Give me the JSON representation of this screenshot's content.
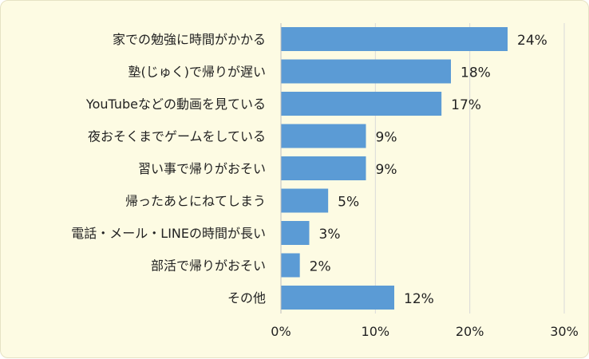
{
  "chart_data": {
    "type": "bar",
    "orientation": "horizontal",
    "categories": [
      "家での勉強に時間がかかる",
      "塾(じゅく)で帰りが遅い",
      "YouTubeなどの動画を見ている",
      "夜おそくまでゲームをしている",
      "習い事で帰りがおそい",
      "帰ったあとにねてしまう",
      "電話・メール・LINEの時間が長い",
      "部活で帰りがおそい",
      "その他"
    ],
    "values": [
      24,
      18,
      17,
      9,
      9,
      5,
      3,
      2,
      12
    ],
    "value_labels": [
      "24%",
      "18%",
      "17%",
      "9%",
      "9%",
      "5%",
      "3%",
      "2%",
      "12%"
    ],
    "xlim": [
      0,
      30
    ],
    "xticks": [
      0,
      10,
      20,
      30
    ],
    "xtick_labels": [
      "0%",
      "10%",
      "20%",
      "30%"
    ],
    "grid": true,
    "legend": false,
    "colors": {
      "bar": "#5b9bd5",
      "background": "#fdfbe3",
      "grid": "#d9d9d9",
      "axis": "#bfbfbf"
    }
  }
}
